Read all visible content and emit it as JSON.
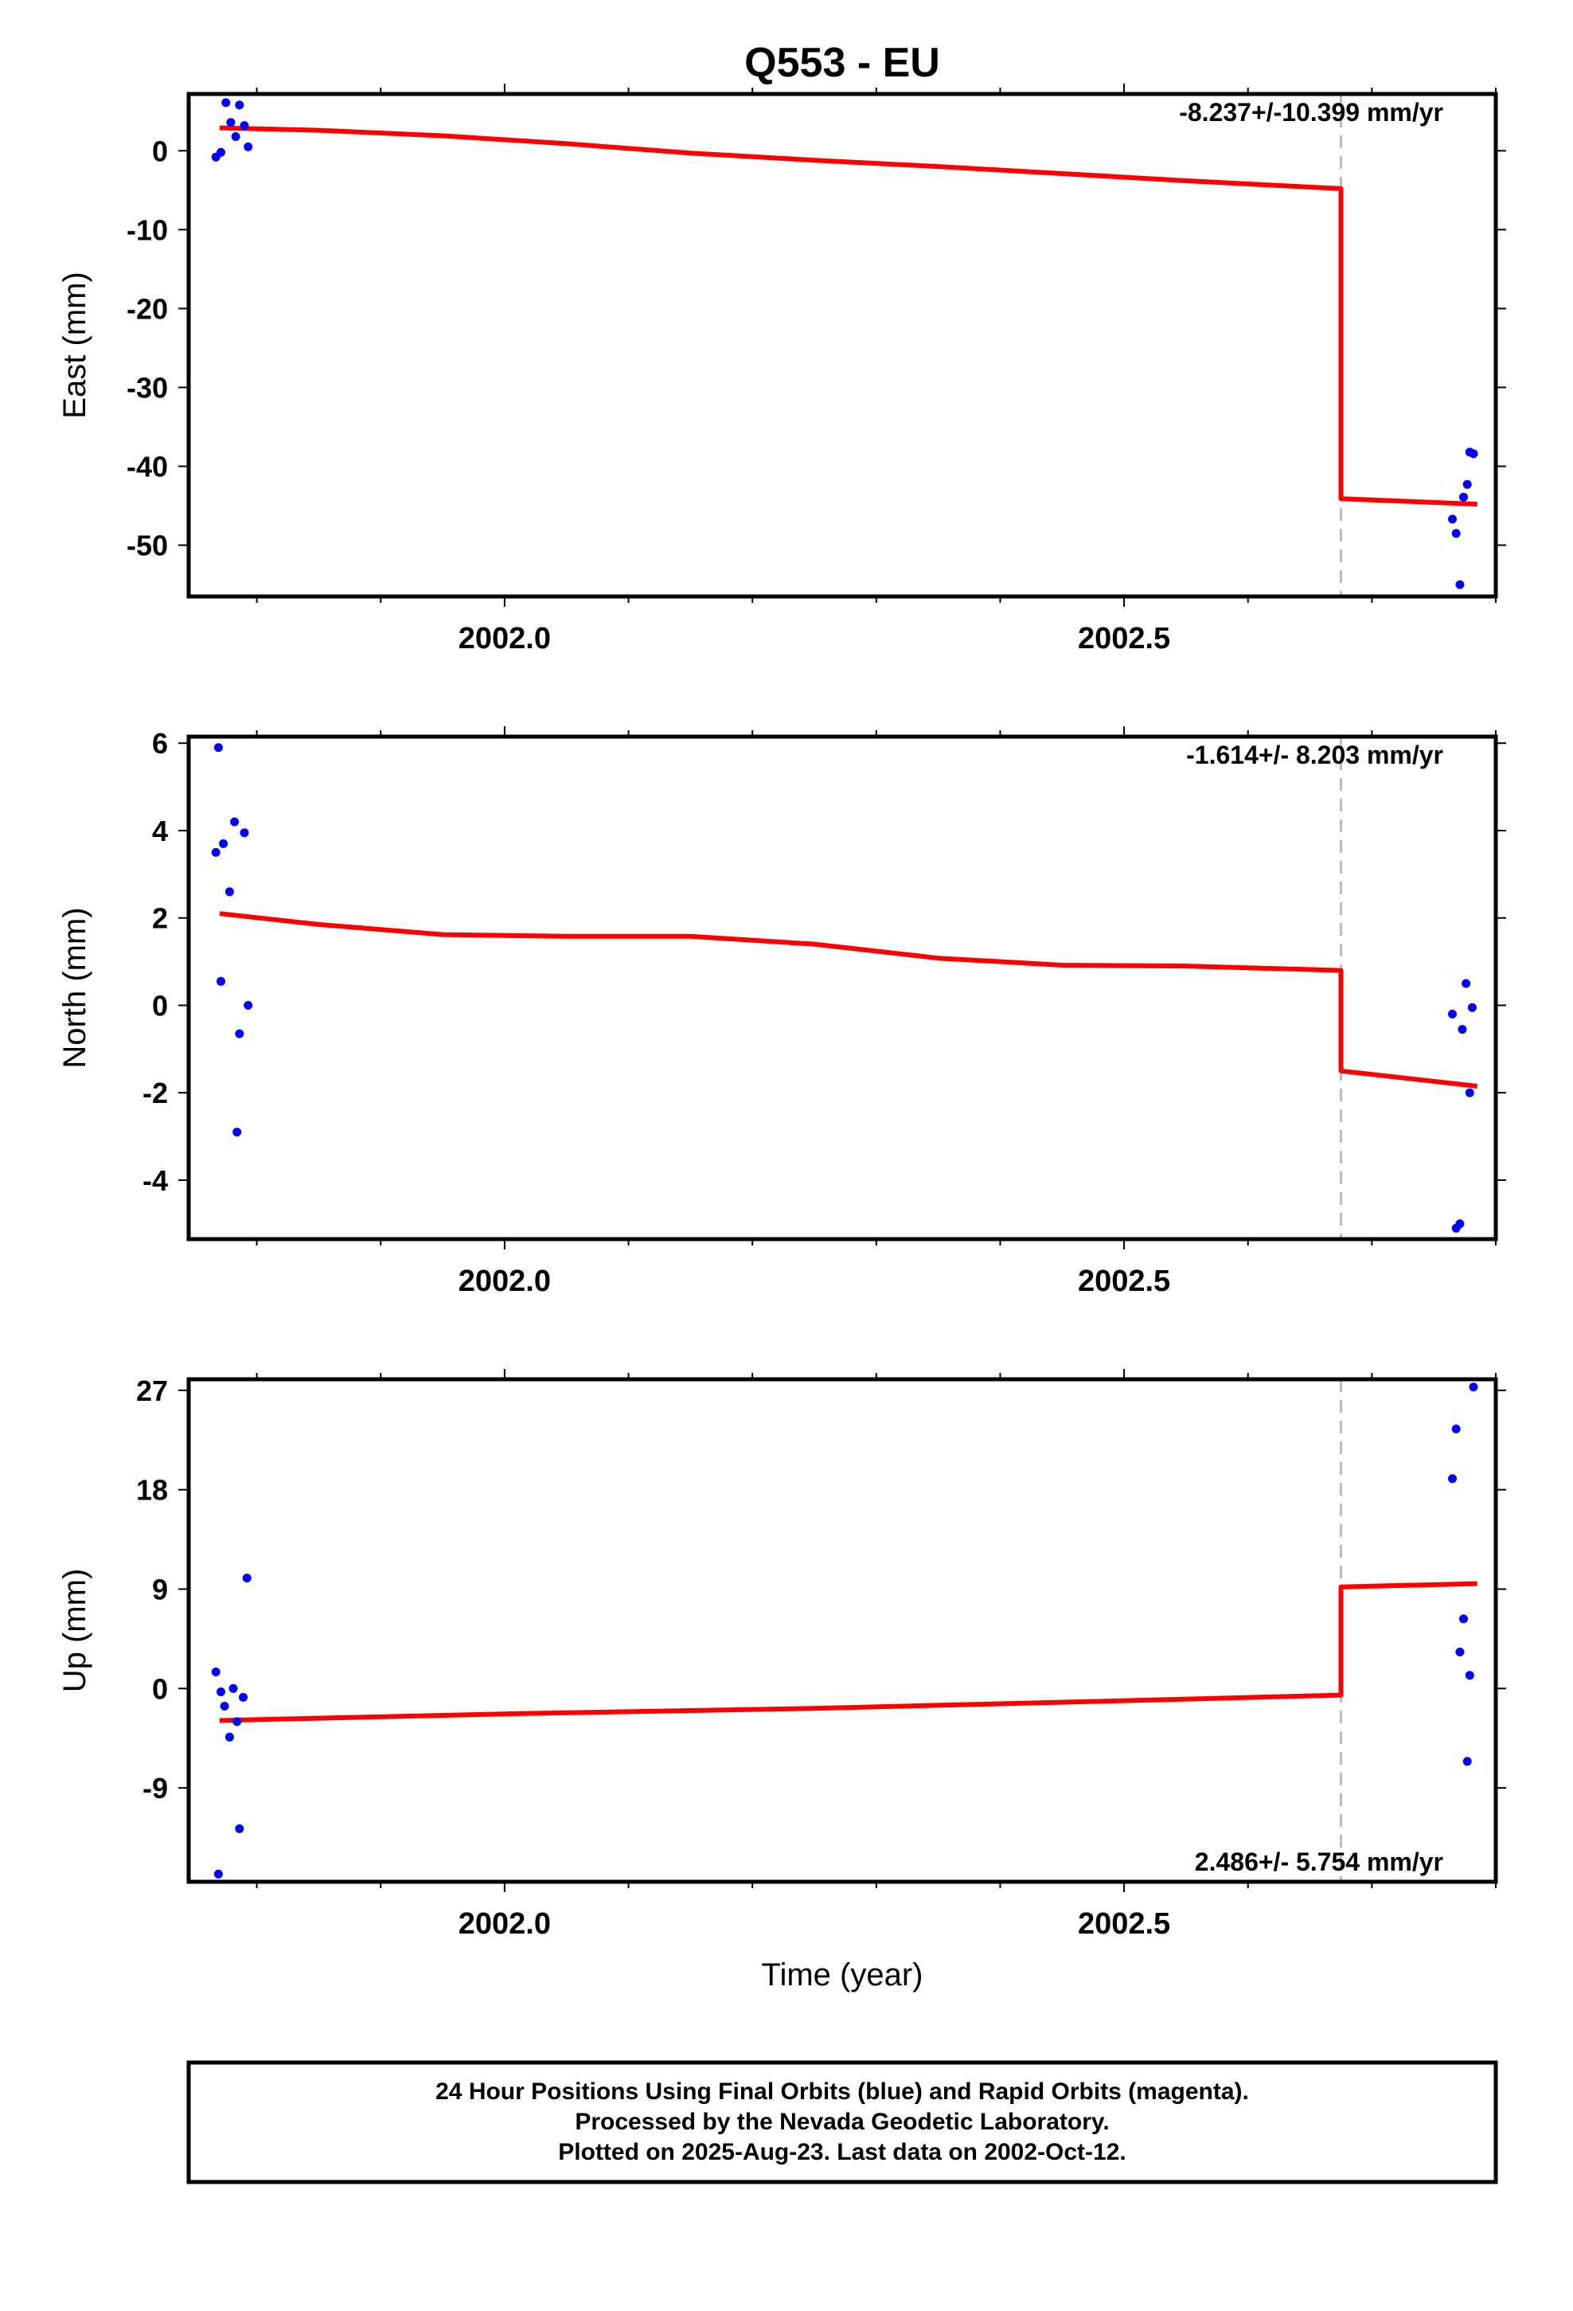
{
  "title": "Q553 - EU",
  "chart_data": [
    {
      "type": "scatter",
      "name": "East",
      "ylabel": "East (mm)",
      "xlabel": "",
      "xlim": [
        2001.745,
        2002.8
      ],
      "ylim": [
        -56.5,
        7.2
      ],
      "yticks": [
        0,
        -10,
        -20,
        -30,
        -40,
        -50
      ],
      "xticks": [
        2002.0,
        2002.5
      ],
      "xtick_labels": [
        "2002.0",
        "2002.5"
      ],
      "rate_text": "-8.237+/-10.399 mm/yr",
      "rate_position": "top-right",
      "color_points": "#0000ff",
      "color_model": "#ff0000",
      "color_step": "#bbbbbb",
      "step_epoch": 2002.675,
      "points": [
        [
          2001.767,
          -0.8
        ],
        [
          2001.771,
          -0.2
        ],
        [
          2001.775,
          6.1
        ],
        [
          2001.779,
          3.6
        ],
        [
          2001.783,
          1.8
        ],
        [
          2001.786,
          5.8
        ],
        [
          2001.79,
          3.2
        ],
        [
          2001.793,
          0.5
        ],
        [
          2002.765,
          -46.7
        ],
        [
          2002.768,
          -48.5
        ],
        [
          2002.771,
          -55.0
        ],
        [
          2002.774,
          -43.9
        ],
        [
          2002.777,
          -42.3
        ],
        [
          2002.779,
          -38.2
        ],
        [
          2002.782,
          -38.4
        ]
      ],
      "model": [
        [
          2001.77,
          2.9
        ],
        [
          2001.85,
          2.6
        ],
        [
          2001.95,
          1.9
        ],
        [
          2002.05,
          0.9
        ],
        [
          2002.15,
          -0.3
        ],
        [
          2002.25,
          -1.2
        ],
        [
          2002.35,
          -2.0
        ],
        [
          2002.45,
          -2.9
        ],
        [
          2002.55,
          -3.8
        ],
        [
          2002.675,
          -4.8
        ],
        [
          2002.675,
          -44.1
        ],
        [
          2002.785,
          -44.8
        ]
      ]
    },
    {
      "type": "scatter",
      "name": "North",
      "ylabel": "North (mm)",
      "xlabel": "",
      "xlim": [
        2001.745,
        2002.8
      ],
      "ylim": [
        -5.35,
        6.15
      ],
      "yticks": [
        6,
        4,
        2,
        0,
        -2,
        -4
      ],
      "xticks": [
        2002.0,
        2002.5
      ],
      "xtick_labels": [
        "2002.0",
        "2002.5"
      ],
      "rate_text": "-1.614+/- 8.203 mm/yr",
      "rate_position": "top-right",
      "color_points": "#0000ff",
      "color_model": "#ff0000",
      "color_step": "#bbbbbb",
      "step_epoch": 2002.675,
      "points": [
        [
          2001.767,
          3.5
        ],
        [
          2001.769,
          5.9
        ],
        [
          2001.771,
          0.55
        ],
        [
          2001.773,
          3.7
        ],
        [
          2001.778,
          2.6
        ],
        [
          2001.782,
          4.2
        ],
        [
          2001.784,
          -2.9
        ],
        [
          2001.786,
          -0.65
        ],
        [
          2001.79,
          3.95
        ],
        [
          2001.793,
          0.0
        ],
        [
          2002.765,
          -0.2
        ],
        [
          2002.768,
          -5.1
        ],
        [
          2002.771,
          -5.0
        ],
        [
          2002.773,
          -0.55
        ],
        [
          2002.776,
          0.5
        ],
        [
          2002.779,
          -2.0
        ],
        [
          2002.781,
          -0.05
        ]
      ],
      "model": [
        [
          2001.77,
          2.1
        ],
        [
          2001.85,
          1.85
        ],
        [
          2001.95,
          1.62
        ],
        [
          2002.05,
          1.58
        ],
        [
          2002.15,
          1.58
        ],
        [
          2002.25,
          1.4
        ],
        [
          2002.35,
          1.08
        ],
        [
          2002.45,
          0.92
        ],
        [
          2002.55,
          0.9
        ],
        [
          2002.675,
          0.8
        ],
        [
          2002.675,
          -1.5
        ],
        [
          2002.785,
          -1.85
        ]
      ]
    },
    {
      "type": "scatter",
      "name": "Up",
      "ylabel": "Up (mm)",
      "xlabel": "Time (year)",
      "xlim": [
        2001.745,
        2002.8
      ],
      "ylim": [
        -17.5,
        28.0
      ],
      "yticks": [
        27,
        18,
        9,
        0,
        -9
      ],
      "xticks": [
        2002.0,
        2002.5
      ],
      "xtick_labels": [
        "2002.0",
        "2002.5"
      ],
      "rate_text": "2.486+/- 5.754 mm/yr",
      "rate_position": "bottom-right",
      "color_points": "#0000ff",
      "color_model": "#ff0000",
      "color_step": "#bbbbbb",
      "step_epoch": 2002.675,
      "points": [
        [
          2001.767,
          1.5
        ],
        [
          2001.769,
          -16.8
        ],
        [
          2001.771,
          -0.3
        ],
        [
          2001.774,
          -1.6
        ],
        [
          2001.778,
          -4.4
        ],
        [
          2001.781,
          0.0
        ],
        [
          2001.784,
          -3.0
        ],
        [
          2001.786,
          -12.7
        ],
        [
          2001.789,
          -0.8
        ],
        [
          2001.792,
          10.0
        ],
        [
          2002.765,
          19.0
        ],
        [
          2002.768,
          23.5
        ],
        [
          2002.771,
          3.3
        ],
        [
          2002.774,
          6.3
        ],
        [
          2002.777,
          -6.6
        ],
        [
          2002.779,
          1.2
        ],
        [
          2002.782,
          27.3
        ]
      ],
      "model": [
        [
          2001.77,
          -2.9
        ],
        [
          2002.0,
          -2.3
        ],
        [
          2002.25,
          -1.8
        ],
        [
          2002.5,
          -1.1
        ],
        [
          2002.675,
          -0.6
        ],
        [
          2002.675,
          9.2
        ],
        [
          2002.785,
          9.5
        ]
      ]
    }
  ],
  "footer": {
    "line1": "24 Hour Positions Using Final Orbits (blue) and Rapid Orbits (magenta).",
    "line2": "Processed by the Nevada Geodetic Laboratory.",
    "line3": "Plotted on 2025-Aug-23. Last data on 2002-Oct-12."
  }
}
